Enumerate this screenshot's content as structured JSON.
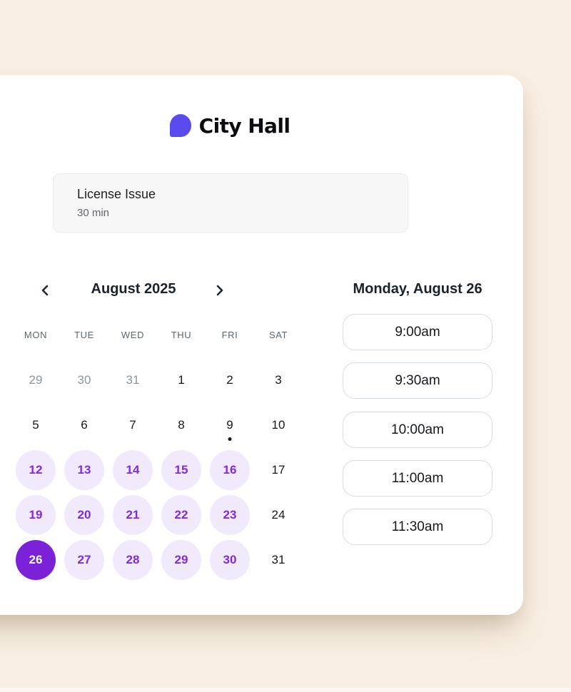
{
  "page": {
    "background_color": "#f8efe2",
    "card_color": "#ffffff"
  },
  "brand": {
    "name": "City Hall",
    "logo_icon": "chat-bubble-icon",
    "logo_color": "#5a4bf0"
  },
  "event": {
    "title": "License Issue",
    "duration": "30 min"
  },
  "calendar": {
    "month_label": "August 2025",
    "prev_icon": "chevron-left-icon",
    "next_icon": "chevron-right-icon",
    "weekdays": [
      "MON",
      "TUE",
      "WED",
      "THU",
      "FRI",
      "SAT"
    ],
    "weeks": [
      [
        {
          "day": "29",
          "state": "muted"
        },
        {
          "day": "30",
          "state": "muted"
        },
        {
          "day": "31",
          "state": "muted"
        },
        {
          "day": "1",
          "state": "plain"
        },
        {
          "day": "2",
          "state": "plain"
        },
        {
          "day": "3",
          "state": "plain"
        }
      ],
      [
        {
          "day": "5",
          "state": "plain"
        },
        {
          "day": "6",
          "state": "plain"
        },
        {
          "day": "7",
          "state": "plain"
        },
        {
          "day": "8",
          "state": "plain"
        },
        {
          "day": "9",
          "state": "plain",
          "today": true
        },
        {
          "day": "10",
          "state": "plain"
        }
      ],
      [
        {
          "day": "12",
          "state": "available"
        },
        {
          "day": "13",
          "state": "available"
        },
        {
          "day": "14",
          "state": "available"
        },
        {
          "day": "15",
          "state": "available"
        },
        {
          "day": "16",
          "state": "available"
        },
        {
          "day": "17",
          "state": "plain"
        }
      ],
      [
        {
          "day": "19",
          "state": "available"
        },
        {
          "day": "20",
          "state": "available"
        },
        {
          "day": "21",
          "state": "available"
        },
        {
          "day": "22",
          "state": "available"
        },
        {
          "day": "23",
          "state": "available"
        },
        {
          "day": "24",
          "state": "plain"
        }
      ],
      [
        {
          "day": "26",
          "state": "selected"
        },
        {
          "day": "27",
          "state": "available"
        },
        {
          "day": "28",
          "state": "available"
        },
        {
          "day": "29",
          "state": "available"
        },
        {
          "day": "30",
          "state": "available"
        },
        {
          "day": "31",
          "state": "plain"
        }
      ]
    ],
    "colors": {
      "available_bg": "#f1e9fc",
      "available_text": "#7c2ed9",
      "selected_bg": "#7b22d8",
      "selected_text": "#ffffff"
    }
  },
  "schedule": {
    "selected_date_label": "Monday, August 26",
    "slots": [
      "9:00am",
      "9:30am",
      "10:00am",
      "11:00am",
      "11:30am"
    ]
  }
}
